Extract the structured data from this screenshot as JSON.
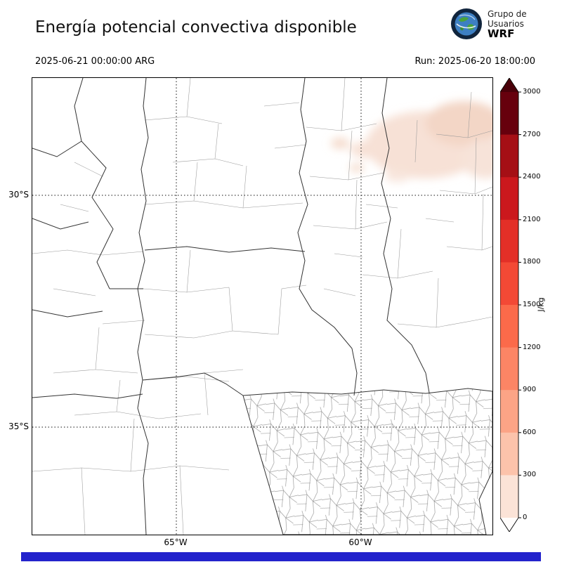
{
  "header": {
    "title": "Energía potencial convectiva disponible",
    "valid_time": "2025-06-21 00:00:00 ARG",
    "run_label": "Run: 2025-06-20 18:00:00",
    "logo": {
      "line1": "Grupo de",
      "line2": "Usuarios",
      "line3": "WRF"
    }
  },
  "map": {
    "lat_ticks": [
      {
        "label": "30°S"
      },
      {
        "label": "35°S"
      }
    ],
    "lon_ticks": [
      {
        "label": "65°W"
      },
      {
        "label": "60°W"
      }
    ]
  },
  "colorbar": {
    "label": "J/kg",
    "ticks_top_to_bottom": [
      "3000",
      "2700",
      "2400",
      "2100",
      "1800",
      "1500",
      "1200",
      "900",
      "600",
      "300",
      "0"
    ],
    "segment_colors_top_to_bottom": [
      "#67000d",
      "#a50f15",
      "#cb181d",
      "#e32f27",
      "#f34935",
      "#fb6a4a",
      "#fc8565",
      "#fca486",
      "#fcc3ab",
      "#fbe3d7"
    ],
    "arrow_top_color": "#4a0009",
    "arrow_bottom_color": "#fffdfc"
  },
  "footer_bar_color": "#2222cc",
  "chart_data": {
    "type": "heatmap",
    "title": "Energía potencial convectiva disponible",
    "variable": "CAPE (convective available potential energy)",
    "valid_time": "2025-06-21 00:00:00 ARG",
    "model_run": "2025-06-20 18:00:00",
    "units": "J/kg",
    "colorbar": {
      "orientation": "vertical",
      "extend": "both",
      "ticks": [
        0,
        300,
        600,
        900,
        1200,
        1500,
        1800,
        2100,
        2400,
        2700,
        3000
      ],
      "label": "J/kg"
    },
    "x_axis": {
      "tick_labels": [
        "65°W",
        "60°W"
      ],
      "gridlines": "dotted"
    },
    "y_axis": {
      "tick_labels": [
        "30°S",
        "35°S"
      ],
      "gridlines": "dotted"
    },
    "field_summary": "CAPE approximately 0 J/kg over nearly the entire mapped region of central Argentina; weak shaded values of roughly 0-300 J/kg appear only in the northeastern corner of the domain"
  }
}
